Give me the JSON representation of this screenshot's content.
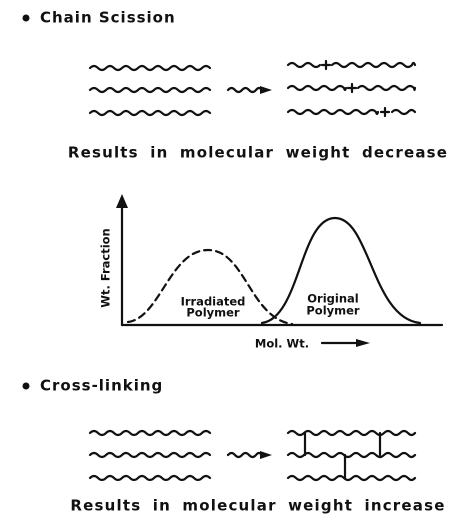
{
  "sections": [
    {
      "title": "Chain Scission",
      "caption": "Results in molecular weight decrease"
    },
    {
      "title": "Cross-linking",
      "caption": "Results in molecular weight increase"
    }
  ],
  "plot": {
    "y_label": "Wt. Fraction",
    "x_label": "Mol. Wt.",
    "curves": [
      {
        "label_lines": [
          "Irradiated",
          "Polymer"
        ]
      },
      {
        "label_lines": [
          "Original",
          "Polymer"
        ]
      }
    ]
  }
}
